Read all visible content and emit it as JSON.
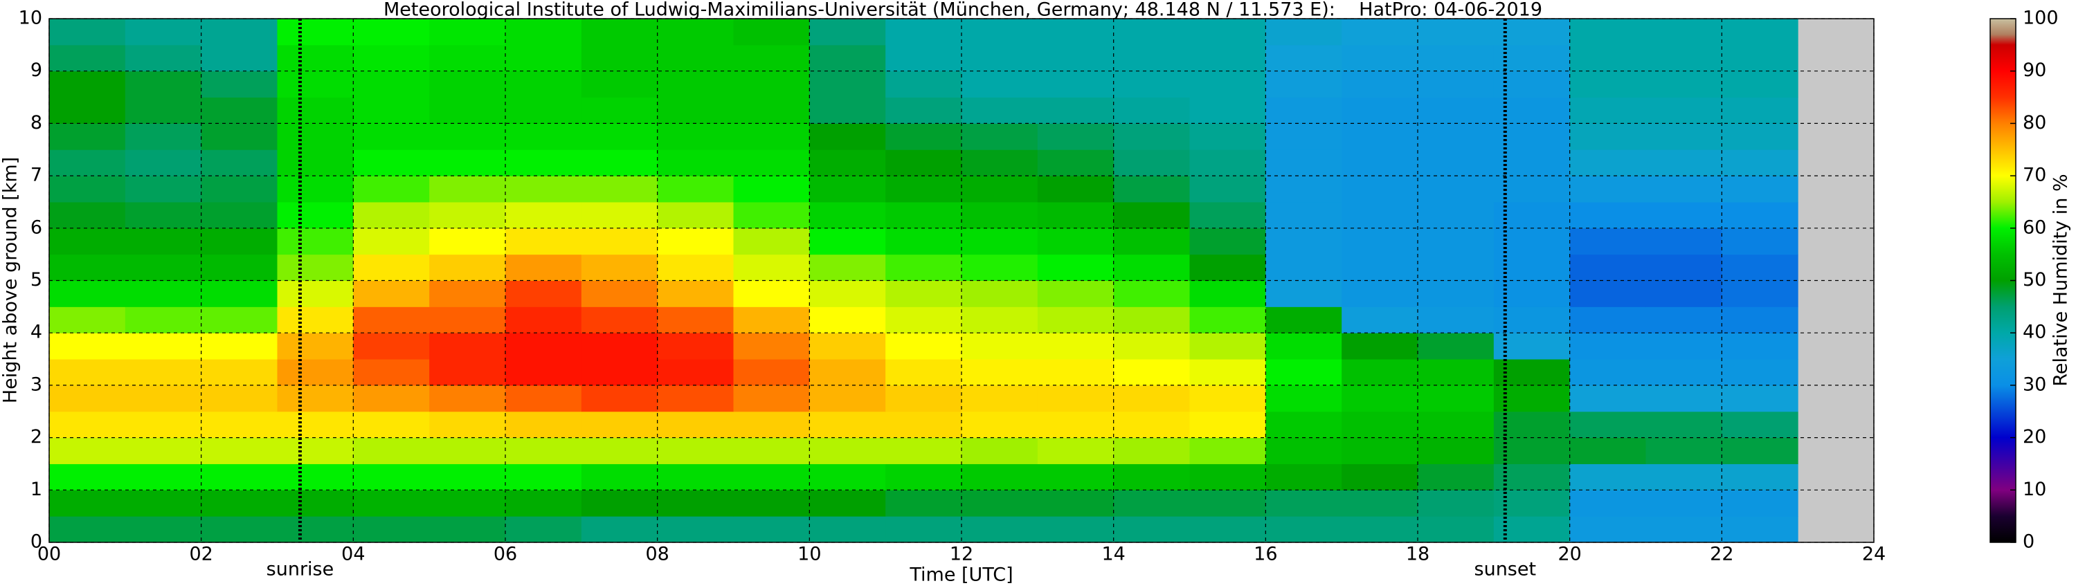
{
  "chart_data": {
    "type": "heatmap",
    "title": "Meteorological Institute of Ludwig-Maximilians-Universität (München, Germany; 48.148 N / 11.573 E):    HatPro: 04-06-2019",
    "x_label": "Time [UTC]",
    "y_label": "Height above ground [km]",
    "x": [
      0,
      1,
      2,
      3,
      4,
      5,
      6,
      7,
      8,
      9,
      10,
      11,
      12,
      13,
      14,
      15,
      16,
      17,
      18,
      19,
      20,
      21,
      22
    ],
    "y": [
      0,
      0.5,
      1,
      1.5,
      2,
      2.5,
      3,
      3.5,
      4,
      4.5,
      5,
      5.5,
      6,
      6.5,
      7,
      7.5,
      8,
      8.5,
      9,
      9.5
    ],
    "z": [
      [
        47,
        47,
        47,
        47,
        47,
        47,
        46,
        44,
        44,
        44,
        44,
        44,
        44,
        44,
        44,
        44,
        44,
        44,
        44,
        42,
        33,
        33,
        33
      ],
      [
        52,
        52,
        52,
        52,
        53,
        53,
        52,
        50,
        50,
        50,
        50,
        48,
        48,
        48,
        47,
        47,
        46,
        46,
        45,
        44,
        32,
        32,
        32
      ],
      [
        60,
        60,
        60,
        60,
        60,
        60,
        60,
        58,
        58,
        58,
        58,
        57,
        56,
        56,
        55,
        54,
        52,
        50,
        48,
        46,
        36,
        36,
        36
      ],
      [
        67,
        67,
        67,
        67,
        66,
        66,
        66,
        66,
        66,
        66,
        66,
        66,
        65,
        66,
        65,
        64,
        55,
        54,
        53,
        48,
        48,
        47,
        47
      ],
      [
        72,
        72,
        72,
        72,
        72,
        73,
        74,
        74,
        74,
        74,
        73,
        73,
        72,
        72,
        72,
        71,
        56,
        55,
        55,
        48,
        46,
        46,
        45
      ],
      [
        74,
        74,
        74,
        76,
        78,
        80,
        82,
        84,
        83,
        80,
        76,
        74,
        73,
        73,
        73,
        72,
        58,
        56,
        56,
        52,
        35,
        35,
        35
      ],
      [
        73,
        73,
        73,
        78,
        82,
        86,
        88,
        88,
        87,
        82,
        76,
        72,
        71,
        71,
        70,
        69,
        60,
        55,
        55,
        50,
        32,
        32,
        32
      ],
      [
        70,
        70,
        70,
        76,
        84,
        86,
        88,
        88,
        86,
        80,
        74,
        70,
        69,
        69,
        68,
        66,
        58,
        50,
        48,
        35,
        31,
        31,
        31
      ],
      [
        64,
        63,
        63,
        72,
        82,
        82,
        86,
        84,
        82,
        76,
        70,
        68,
        67,
        66,
        65,
        62,
        52,
        34,
        33,
        32,
        29,
        29,
        29
      ],
      [
        58,
        58,
        58,
        68,
        76,
        80,
        84,
        80,
        76,
        70,
        68,
        66,
        65,
        64,
        62,
        58,
        34,
        32,
        32,
        31,
        27,
        27,
        28
      ],
      [
        54,
        54,
        54,
        64,
        72,
        74,
        78,
        76,
        72,
        68,
        64,
        62,
        61,
        60,
        58,
        50,
        33,
        32,
        32,
        31,
        27,
        27,
        28
      ],
      [
        52,
        52,
        52,
        62,
        68,
        70,
        72,
        72,
        70,
        66,
        60,
        58,
        58,
        57,
        55,
        48,
        33,
        32,
        32,
        31,
        28,
        28,
        29
      ],
      [
        49,
        48,
        48,
        60,
        66,
        67,
        68,
        68,
        66,
        62,
        57,
        56,
        55,
        54,
        50,
        46,
        33,
        32,
        32,
        31,
        30,
        30,
        30
      ],
      [
        47,
        46,
        47,
        58,
        62,
        64,
        64,
        64,
        62,
        60,
        54,
        52,
        52,
        50,
        47,
        44,
        33,
        32,
        32,
        32,
        33,
        33,
        33
      ],
      [
        46,
        45,
        46,
        57,
        60,
        60,
        60,
        60,
        58,
        58,
        52,
        50,
        49,
        48,
        45,
        43,
        33,
        32,
        32,
        32,
        36,
        36,
        36
      ],
      [
        48,
        46,
        48,
        57,
        58,
        58,
        58,
        58,
        57,
        57,
        50,
        48,
        47,
        46,
        44,
        42,
        33,
        32,
        32,
        32,
        38,
        38,
        38
      ],
      [
        50,
        48,
        48,
        57,
        58,
        57,
        57,
        57,
        56,
        56,
        46,
        44,
        42,
        42,
        41,
        40,
        33,
        32,
        32,
        32,
        39,
        39,
        39
      ],
      [
        50,
        48,
        46,
        58,
        58,
        57,
        57,
        56,
        56,
        56,
        46,
        42,
        40,
        40,
        40,
        40,
        34,
        33,
        33,
        33,
        40,
        40,
        40
      ],
      [
        46,
        44,
        42,
        58,
        59,
        58,
        58,
        56,
        56,
        56,
        46,
        40,
        40,
        40,
        40,
        40,
        35,
        34,
        34,
        34,
        40,
        40,
        40
      ],
      [
        44,
        42,
        42,
        60,
        60,
        59,
        58,
        56,
        56,
        55,
        44,
        40,
        40,
        40,
        40,
        40,
        36,
        35,
        35,
        35,
        40,
        40,
        40
      ]
    ],
    "xlim": [
      0,
      24
    ],
    "xticks": [
      {
        "value": 0,
        "label": "00"
      },
      {
        "value": 2,
        "label": "02"
      },
      {
        "value": 4,
        "label": "04"
      },
      {
        "value": 6,
        "label": "06"
      },
      {
        "value": 8,
        "label": "08"
      },
      10,
      12,
      14,
      16,
      18,
      20,
      22,
      24
    ],
    "ylim": [
      0,
      10
    ],
    "yticks": [
      0,
      1,
      2,
      3,
      4,
      5,
      6,
      7,
      8,
      9,
      10
    ],
    "grid": true,
    "missing_color": "#c8c8c8",
    "annotations": [
      {
        "x": 3.3,
        "label": "sunrise"
      },
      {
        "x": 19.15,
        "label": "sunset"
      }
    ],
    "colorscale": [
      [
        0,
        "#000000"
      ],
      [
        5,
        "#1a0030"
      ],
      [
        10,
        "#800080"
      ],
      [
        20,
        "#0000cc"
      ],
      [
        30,
        "#0a8fe6"
      ],
      [
        35,
        "#0fa0d8"
      ],
      [
        40,
        "#00a8a8"
      ],
      [
        45,
        "#00a070"
      ],
      [
        50,
        "#00a000"
      ],
      [
        55,
        "#00c000"
      ],
      [
        60,
        "#00f000"
      ],
      [
        65,
        "#a0f000"
      ],
      [
        70,
        "#ffff00"
      ],
      [
        75,
        "#ffc000"
      ],
      [
        80,
        "#ff8000"
      ],
      [
        85,
        "#ff3000"
      ],
      [
        90,
        "#ff0000"
      ],
      [
        95,
        "#cc0000"
      ],
      [
        97,
        "#b08060"
      ],
      [
        100,
        "#c8c0a0"
      ]
    ],
    "colorbar": {
      "label": "Relative Humidity in %",
      "lim": [
        0,
        100
      ],
      "ticks": [
        0,
        10,
        20,
        30,
        40,
        50,
        60,
        70,
        80,
        90,
        100
      ]
    }
  }
}
